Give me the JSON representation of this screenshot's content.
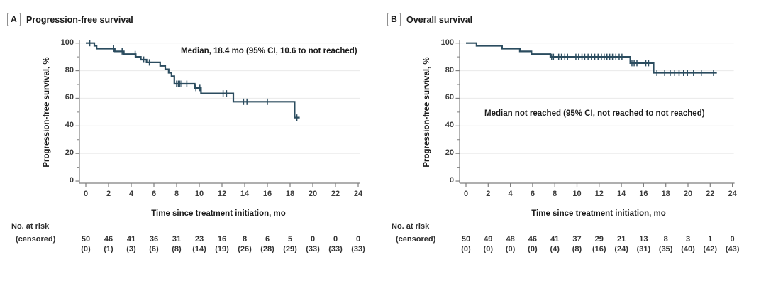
{
  "chart_data": [
    {
      "type": "line",
      "subtype": "kaplan-meier-step",
      "panel_label": "A",
      "title": "Progression-free survival",
      "ylabel": "Progression-free survival, %",
      "xlabel": "Time since treatment initiation, mo",
      "annotation": "Median, 18.4 mo (95% CI, 10.6 to not reached)",
      "xlim": [
        0,
        24
      ],
      "ylim": [
        0,
        100
      ],
      "xticks": [
        0,
        2,
        4,
        6,
        8,
        10,
        12,
        14,
        16,
        18,
        20,
        22,
        24
      ],
      "yticks": [
        0,
        20,
        40,
        60,
        80,
        100
      ],
      "grid": "horizontal-light",
      "legend": "none",
      "steps": [
        [
          0,
          100
        ],
        [
          0.75,
          98
        ],
        [
          0.95,
          96
        ],
        [
          2.55,
          94
        ],
        [
          3.35,
          92
        ],
        [
          4.4,
          90
        ],
        [
          4.85,
          88
        ],
        [
          5.35,
          86
        ],
        [
          6.55,
          83.5
        ],
        [
          7.0,
          81
        ],
        [
          7.3,
          78.5
        ],
        [
          7.55,
          76
        ],
        [
          7.8,
          70.5
        ],
        [
          9.6,
          67.5
        ],
        [
          10.15,
          63.5
        ],
        [
          13.0,
          57.5
        ],
        [
          18.4,
          46
        ]
      ],
      "curve_end": 18.85,
      "censor_times": [
        0.35,
        2.45,
        3.2,
        4.35,
        5.1,
        5.6,
        8.0,
        8.15,
        8.3,
        8.45,
        8.9,
        9.7,
        10.05,
        12.1,
        12.4,
        13.9,
        14.2,
        16.0,
        18.6
      ],
      "risk_table": {
        "label": "No. at risk",
        "censored_label": "(censored)",
        "times": [
          0,
          2,
          4,
          6,
          8,
          10,
          12,
          14,
          16,
          18,
          20,
          22,
          24
        ],
        "at_risk": [
          50,
          46,
          41,
          36,
          31,
          23,
          16,
          8,
          6,
          5,
          0,
          0,
          0
        ],
        "censored": [
          0,
          1,
          3,
          6,
          8,
          14,
          19,
          26,
          28,
          29,
          33,
          33,
          33
        ]
      }
    },
    {
      "type": "line",
      "subtype": "kaplan-meier-step",
      "panel_label": "B",
      "title": "Overall survival",
      "ylabel": "Progression-free survival, %",
      "xlabel": "Time since treatment initiation, mo",
      "annotation": "Median not reached (95% CI, not reached to not reached)",
      "xlim": [
        0,
        24
      ],
      "ylim": [
        0,
        100
      ],
      "xticks": [
        0,
        2,
        4,
        6,
        8,
        10,
        12,
        14,
        16,
        18,
        20,
        22,
        24
      ],
      "yticks": [
        0,
        20,
        40,
        60,
        80,
        100
      ],
      "grid": "horizontal-light",
      "legend": "none",
      "steps": [
        [
          0,
          100
        ],
        [
          0.95,
          98
        ],
        [
          3.25,
          96
        ],
        [
          4.85,
          94
        ],
        [
          5.9,
          92
        ],
        [
          7.6,
          90
        ],
        [
          14.8,
          85.5
        ],
        [
          16.9,
          78.5
        ]
      ],
      "curve_end": 22.6,
      "censor_times": [
        7.72,
        7.88,
        8.35,
        8.6,
        8.9,
        9.15,
        9.9,
        10.15,
        10.45,
        10.7,
        11.0,
        11.3,
        11.6,
        11.9,
        12.2,
        12.45,
        12.7,
        12.95,
        13.2,
        13.5,
        13.8,
        14.05,
        14.95,
        15.15,
        15.4,
        16.2,
        16.45,
        17.2,
        17.9,
        18.4,
        18.8,
        19.2,
        19.6,
        19.95,
        20.5,
        21.2,
        22.3
      ],
      "risk_table": {
        "label": "No. at risk",
        "censored_label": "(censored)",
        "times": [
          0,
          2,
          4,
          6,
          8,
          10,
          12,
          14,
          16,
          18,
          20,
          22,
          24
        ],
        "at_risk": [
          50,
          49,
          48,
          46,
          41,
          37,
          29,
          21,
          13,
          8,
          3,
          1,
          0
        ],
        "censored": [
          0,
          0,
          0,
          0,
          4,
          8,
          16,
          24,
          31,
          35,
          40,
          42,
          43
        ]
      }
    }
  ],
  "colors": {
    "curve": "#2b4c5f",
    "grid": "#ececec",
    "axis": "#7f7f7f",
    "text": "#1a1a1a",
    "tick_text": "#3a3a3a"
  }
}
